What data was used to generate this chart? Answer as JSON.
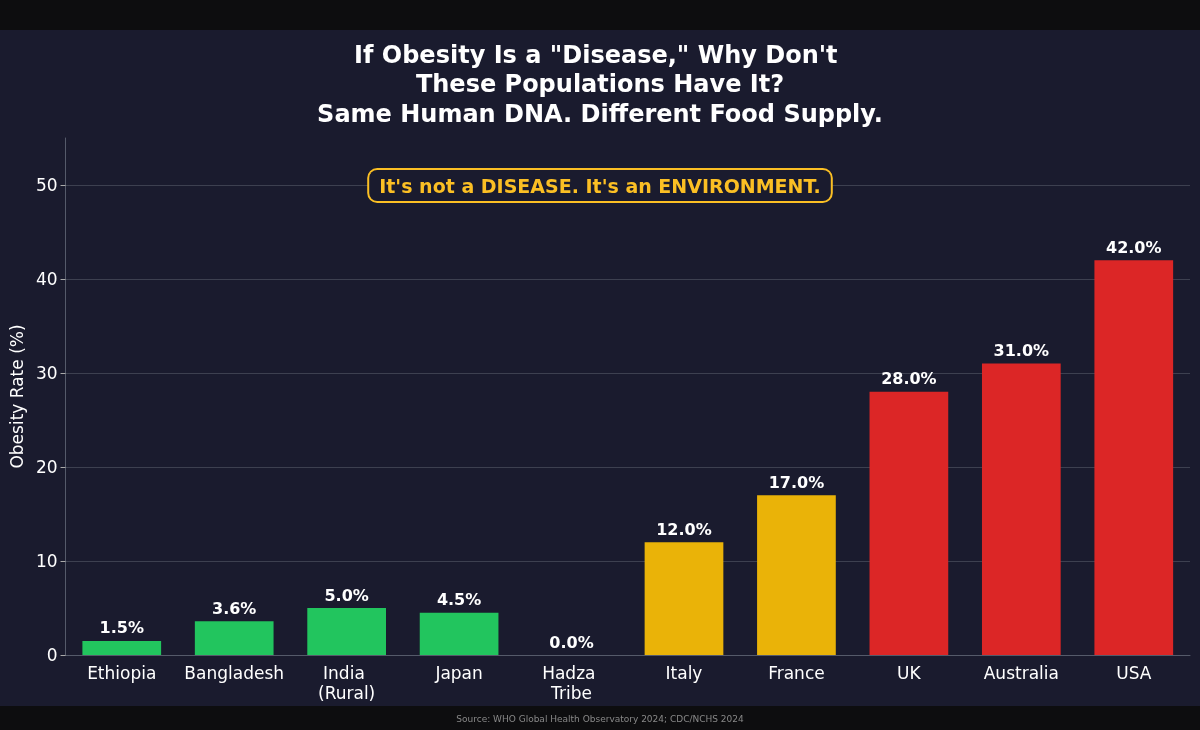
{
  "chart_data": {
    "type": "bar",
    "title": "If Obesity Is a \"Disease,\" Why Don't These Populations Have It?",
    "subtitle": "Same Human DNA. Different Food Supply.",
    "ylabel": "Obesity Rate (%)",
    "categories": [
      "Ethiopia",
      "Bangladesh",
      "India (Rural)",
      "Japan",
      "Hadza Tribe",
      "Italy",
      "France",
      "UK",
      "Australia",
      "USA"
    ],
    "values": [
      1.5,
      3.6,
      5.0,
      4.5,
      0.0,
      12.0,
      17.0,
      28.0,
      31.0,
      42.0
    ],
    "colors": [
      "#22c55e",
      "#22c55e",
      "#22c55e",
      "#22c55e",
      "#22c55e",
      "#eab308",
      "#eab308",
      "#dc2626",
      "#dc2626",
      "#dc2626"
    ],
    "value_labels": [
      "1.5%",
      "3.6%",
      "5.0%",
      "4.5%",
      "0.0%",
      "12.0%",
      "17.0%",
      "28.0%",
      "31.0%",
      "42.0%"
    ],
    "ylim": [
      0,
      55
    ],
    "yticks": [
      0,
      10,
      20,
      30,
      40,
      50
    ],
    "grid": "y",
    "annotations": [
      "It's not a DISEASE. It's an ENVIRONMENT.",
      "Source: WHO Global Health Observatory 2024; CDC/NCHS 2024"
    ]
  }
}
